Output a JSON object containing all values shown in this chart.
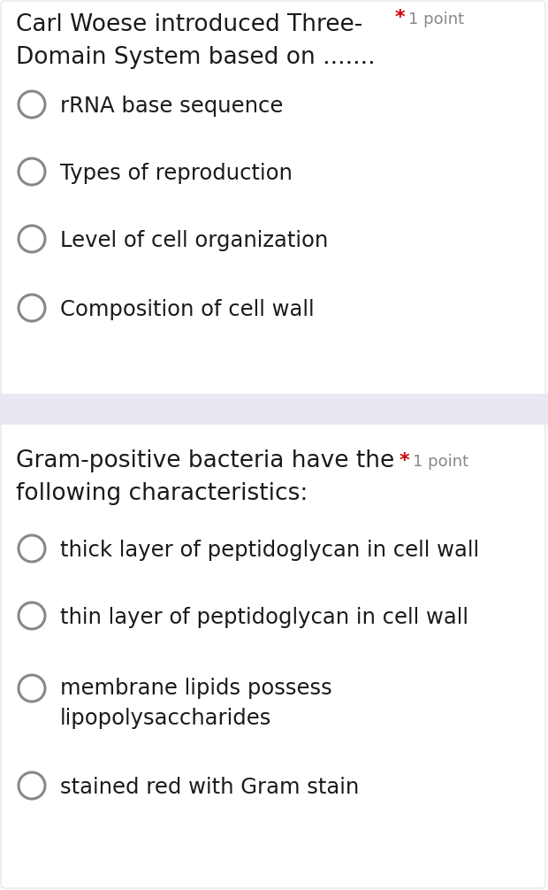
{
  "bg_color": "#ffffff",
  "divider_color": "#e8e8f2",
  "section2_bg": "#f8f8fc",
  "text_color": "#1a1a1a",
  "circle_color": "#888888",
  "asterisk_color": "#cc0000",
  "point_color": "#888888",
  "q1": {
    "question_line1": "Carl Woese introduced Three-",
    "question_line2": "Domain System based on .......",
    "options": [
      "rRNA base sequence",
      "Types of reproduction",
      "Level of cell organization",
      "Composition of cell wall"
    ]
  },
  "q2": {
    "question_line1": "Gram-positive bacteria have the",
    "question_line2": "following characteristics:",
    "options": [
      "thick layer of peptidoglycan in cell wall",
      "thin layer of peptidoglycan in cell wall",
      "membrane lipids possess\nlipopolysaccharides",
      "stained red with Gram stain"
    ]
  },
  "figsize": [
    6.2,
    10.06
  ],
  "dpi": 100
}
